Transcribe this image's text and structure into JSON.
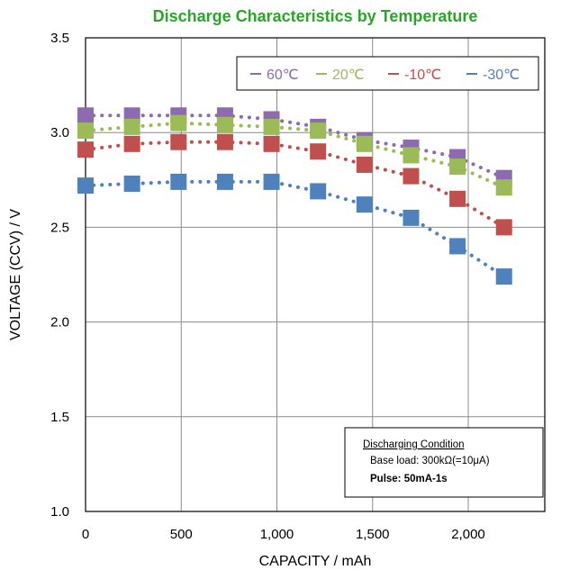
{
  "chart_data": {
    "type": "scatter",
    "title": "Discharge Characteristics by Temperature",
    "title_color": "#2aa52a",
    "xlabel": "CAPACITY / mAh",
    "ylabel": "VOLTAGE (CCV) / V",
    "xlim": [
      0,
      2400
    ],
    "ylim": [
      1.0,
      3.5
    ],
    "xticks": [
      0,
      500,
      1000,
      1500,
      2000
    ],
    "xtick_labels": [
      "0",
      "500",
      "1,000",
      "1,500",
      "2,000"
    ],
    "yticks": [
      1.0,
      1.5,
      2.0,
      2.5,
      3.0,
      3.5
    ],
    "ytick_labels": [
      "1.0",
      "1.5",
      "2.0",
      "2.5",
      "3.0",
      "3.5"
    ],
    "grid": true,
    "legend_position": "top-right",
    "x": [
      0,
      243,
      486,
      729,
      972,
      1215,
      1458,
      1701,
      1944,
      2187
    ],
    "series": [
      {
        "name": "60℃",
        "color": "#8e6bb0",
        "values": [
          3.09,
          3.09,
          3.09,
          3.09,
          3.07,
          3.03,
          2.96,
          2.92,
          2.87,
          2.76
        ]
      },
      {
        "name": "20℃",
        "color": "#9bbb59",
        "values": [
          3.01,
          3.03,
          3.05,
          3.04,
          3.03,
          3.01,
          2.94,
          2.88,
          2.82,
          2.71
        ]
      },
      {
        "name": "-10℃",
        "color": "#c0504d",
        "values": [
          2.91,
          2.94,
          2.95,
          2.95,
          2.94,
          2.9,
          2.83,
          2.77,
          2.65,
          2.5
        ]
      },
      {
        "name": "-30℃",
        "color": "#4f81bd",
        "values": [
          2.72,
          2.73,
          2.74,
          2.74,
          2.74,
          2.69,
          2.62,
          2.55,
          2.4,
          2.24
        ]
      }
    ],
    "annotation": {
      "heading": "Discharging Condition",
      "line1": "Base load: 300kΩ(=10μA)",
      "line2": "Pulse: 50mA-1s"
    }
  }
}
